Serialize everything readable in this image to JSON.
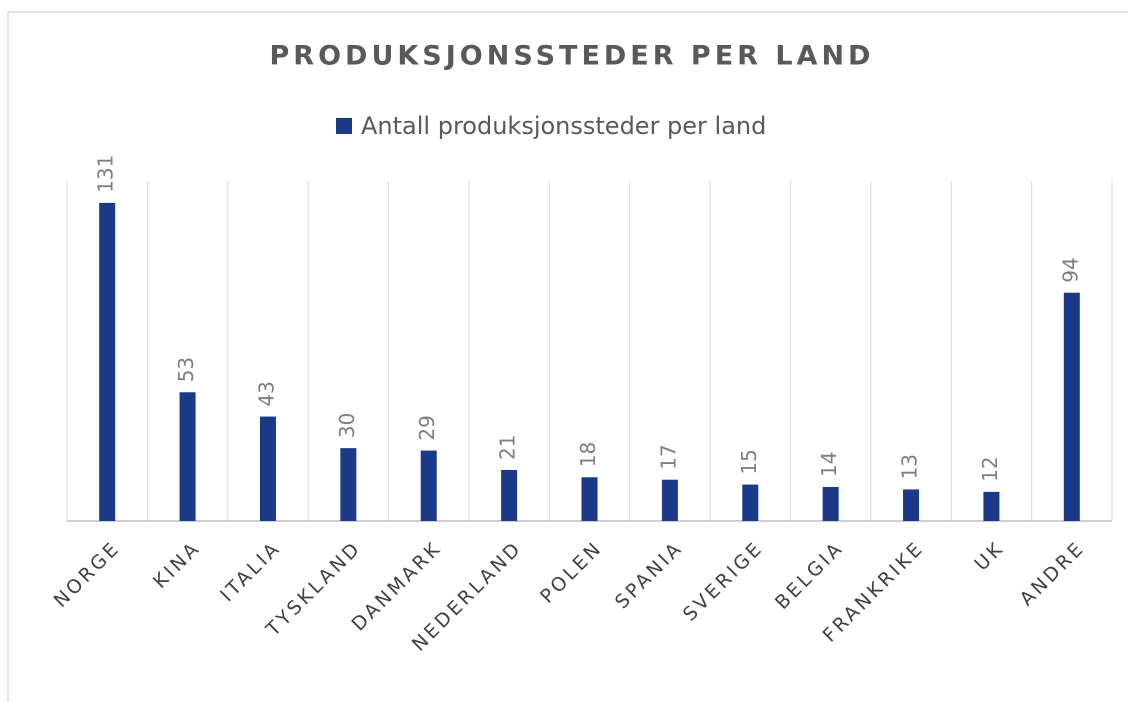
{
  "chart_data": {
    "type": "bar",
    "title": "PRODUKSJONSSTEDER PER LAND",
    "categories": [
      "NORGE",
      "KINA",
      "ITALIA",
      "TYSKLAND",
      "DANMARK",
      "NEDERLAND",
      "POLEN",
      "SPANIA",
      "SVERIGE",
      "BELGIA",
      "FRANKRIKE",
      "UK",
      "ANDRE"
    ],
    "series": [
      {
        "name": "Antall produksjonssteder per land",
        "color": "#1a3a87",
        "values": [
          131,
          53,
          43,
          30,
          29,
          21,
          18,
          17,
          15,
          14,
          13,
          12,
          94
        ]
      }
    ],
    "ylim": [
      0,
      140
    ],
    "legend": "top"
  }
}
